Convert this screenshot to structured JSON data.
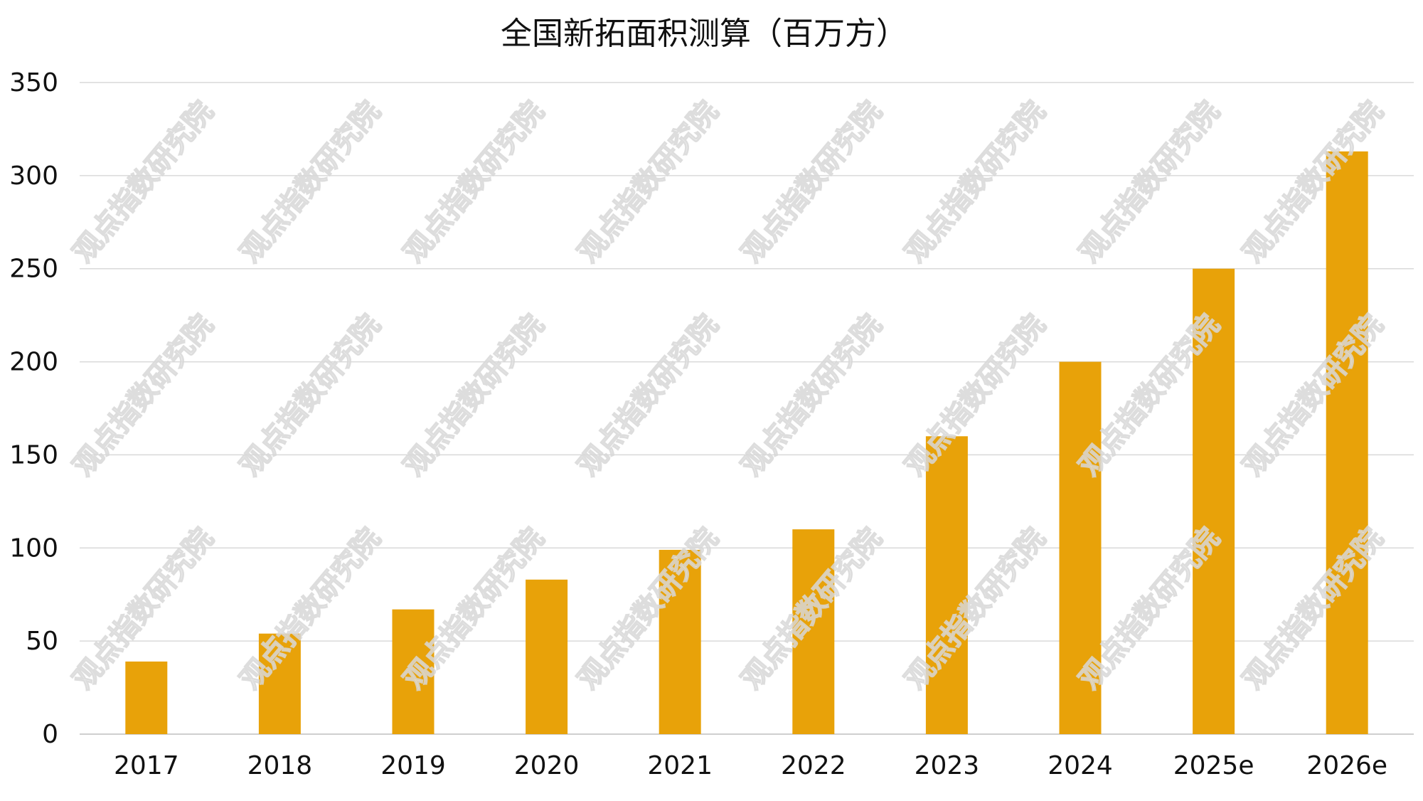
{
  "chart_data": {
    "type": "bar",
    "title": "全国新拓面积测算（百万方）",
    "xlabel": "",
    "ylabel": "",
    "categories": [
      "2017",
      "2018",
      "2019",
      "2020",
      "2021",
      "2022",
      "2023",
      "2024",
      "2025e",
      "2026e"
    ],
    "values": [
      39,
      54,
      67,
      83,
      99,
      110,
      160,
      200,
      250,
      313
    ],
    "ylim": [
      0,
      350
    ],
    "yticks": [
      0,
      50,
      100,
      150,
      200,
      250,
      300,
      350
    ],
    "grid": true,
    "legend": "none",
    "bar_color": "#E8A209",
    "watermark": "观点指数研究院"
  }
}
